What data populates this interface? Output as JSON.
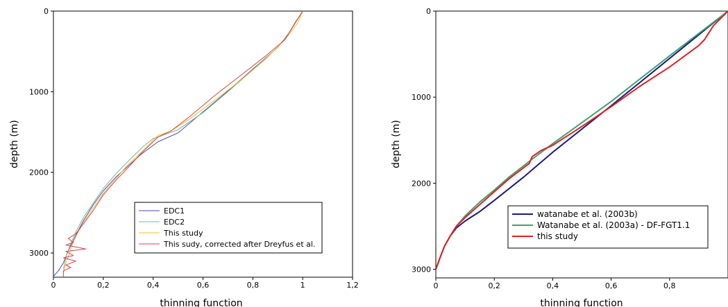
{
  "chart_data": [
    {
      "type": "line",
      "xlabel": "thinning function",
      "ylabel": "depth (m)",
      "xlim": [
        0,
        1.2
      ],
      "ylim": [
        3300,
        0
      ],
      "y_inverted": true,
      "xticks": [
        0,
        0.2,
        0.4,
        0.6,
        0.8,
        1.0,
        1.2
      ],
      "xtick_labels": [
        "0",
        "0,2",
        "0,4",
        "0,6",
        "0,8",
        "1",
        "1,2"
      ],
      "yticks": [
        0,
        1000,
        2000,
        3000
      ],
      "ytick_labels": [
        "0",
        "1000",
        "2000",
        "3000"
      ],
      "legend_position": "lower-right",
      "series": [
        {
          "name": "EDC1",
          "color": "#4a4ab8",
          "points": [
            [
              1.0,
              0
            ],
            [
              0.95,
              250
            ],
            [
              0.9,
              450
            ],
            [
              0.8,
              720
            ],
            [
              0.7,
              990
            ],
            [
              0.6,
              1250
            ],
            [
              0.5,
              1510
            ],
            [
              0.42,
              1620
            ],
            [
              0.35,
              1780
            ],
            [
              0.3,
              1920
            ],
            [
              0.25,
              2060
            ],
            [
              0.2,
              2230
            ],
            [
              0.16,
              2400
            ],
            [
              0.12,
              2600
            ],
            [
              0.09,
              2780
            ],
            [
              0.06,
              2970
            ],
            [
              0.04,
              3120
            ],
            [
              0.02,
              3220
            ],
            [
              0.0,
              3290
            ]
          ]
        },
        {
          "name": "EDC2",
          "color": "#6fb8a0",
          "points": [
            [
              1.0,
              0
            ],
            [
              0.95,
              250
            ],
            [
              0.9,
              450
            ],
            [
              0.8,
              730
            ],
            [
              0.7,
              1000
            ],
            [
              0.6,
              1260
            ],
            [
              0.5,
              1470
            ],
            [
              0.44,
              1540
            ],
            [
              0.4,
              1580
            ],
            [
              0.36,
              1680
            ],
            [
              0.3,
              1860
            ],
            [
              0.25,
              2020
            ],
            [
              0.2,
              2200
            ],
            [
              0.16,
              2380
            ],
            [
              0.12,
              2560
            ],
            [
              0.09,
              2740
            ],
            [
              0.07,
              2880
            ],
            [
              0.05,
              3050
            ],
            [
              0.04,
              3200
            ]
          ]
        },
        {
          "name": "This study",
          "color": "#f0c020",
          "points": [
            [
              1.0,
              0
            ],
            [
              0.98,
              150
            ],
            [
              0.93,
              350
            ],
            [
              0.85,
              600
            ],
            [
              0.75,
              860
            ],
            [
              0.65,
              1100
            ],
            [
              0.55,
              1330
            ],
            [
              0.47,
              1490
            ],
            [
              0.42,
              1540
            ],
            [
              0.4,
              1600
            ],
            [
              0.35,
              1760
            ],
            [
              0.3,
              1900
            ],
            [
              0.25,
              2080
            ],
            [
              0.2,
              2260
            ],
            [
              0.16,
              2440
            ],
            [
              0.12,
              2620
            ],
            [
              0.1,
              2740
            ],
            [
              0.08,
              2860
            ],
            [
              0.07,
              2950
            ],
            [
              0.06,
              3040
            ],
            [
              0.05,
              3120
            ],
            [
              0.04,
              3250
            ]
          ]
        },
        {
          "name": "This sudy, corrected after Dreyfus et al.",
          "color": "#e04050",
          "points": [
            [
              1.0,
              0
            ],
            [
              0.97,
              140
            ],
            [
              0.93,
              350
            ],
            [
              0.9,
              430
            ],
            [
              0.85,
              560
            ],
            [
              0.75,
              800
            ],
            [
              0.65,
              1040
            ],
            [
              0.55,
              1300
            ],
            [
              0.47,
              1490
            ],
            [
              0.42,
              1560
            ],
            [
              0.4,
              1620
            ],
            [
              0.35,
              1770
            ],
            [
              0.3,
              1940
            ],
            [
              0.25,
              2100
            ],
            [
              0.2,
              2280
            ],
            [
              0.16,
              2470
            ],
            [
              0.12,
              2640
            ],
            [
              0.09,
              2760
            ],
            [
              0.06,
              2820
            ],
            [
              0.08,
              2870
            ],
            [
              0.05,
              2900
            ],
            [
              0.13,
              2950
            ],
            [
              0.05,
              2980
            ],
            [
              0.08,
              3030
            ],
            [
              0.04,
              3060
            ],
            [
              0.09,
              3100
            ],
            [
              0.05,
              3150
            ],
            [
              0.07,
              3180
            ],
            [
              0.04,
              3220
            ],
            [
              0.04,
              3300
            ]
          ]
        }
      ]
    },
    {
      "type": "line",
      "xlabel": "thinning function",
      "ylabel": "depth (m)",
      "xlim": [
        0,
        1.0
      ],
      "ylim": [
        3100,
        0
      ],
      "y_inverted": true,
      "xticks": [
        0,
        0.2,
        0.4,
        0.6,
        0.8
      ],
      "xtick_labels": [
        "0",
        "0,2",
        "0,4",
        "0,6",
        "0,8"
      ],
      "yticks": [
        0,
        1000,
        2000,
        3000
      ],
      "ytick_labels": [
        "0",
        "1000",
        "2000",
        "3000"
      ],
      "legend_position": "lower-right",
      "series": [
        {
          "name": "watanabe et al. (2003b)",
          "color": "#1a1a80",
          "points": [
            [
              1.0,
              0
            ],
            [
              0.8,
              550
            ],
            [
              0.6,
              1100
            ],
            [
              0.4,
              1640
            ],
            [
              0.3,
              1930
            ],
            [
              0.2,
              2200
            ],
            [
              0.15,
              2330
            ],
            [
              0.1,
              2440
            ],
            [
              0.07,
              2520
            ],
            [
              0.05,
              2610
            ],
            [
              0.03,
              2730
            ],
            [
              0.015,
              2860
            ],
            [
              0.0,
              3000
            ]
          ]
        },
        {
          "name": "Watanabe et al. (2003a) - DF-FGT1.1",
          "color": "#40a070",
          "points": [
            [
              1.0,
              0
            ],
            [
              0.8,
              520
            ],
            [
              0.6,
              1050
            ],
            [
              0.4,
              1540
            ],
            [
              0.33,
              1720
            ],
            [
              0.25,
              1930
            ],
            [
              0.2,
              2080
            ],
            [
              0.15,
              2220
            ],
            [
              0.1,
              2380
            ],
            [
              0.07,
              2500
            ],
            [
              0.05,
              2610
            ],
            [
              0.03,
              2730
            ],
            [
              0.015,
              2860
            ],
            [
              0.0,
              3000
            ]
          ]
        },
        {
          "name": "this study",
          "color": "#e02020",
          "points": [
            [
              1.0,
              0
            ],
            [
              0.95,
              170
            ],
            [
              0.92,
              330
            ],
            [
              0.9,
              400
            ],
            [
              0.8,
              650
            ],
            [
              0.7,
              870
            ],
            [
              0.6,
              1110
            ],
            [
              0.5,
              1340
            ],
            [
              0.4,
              1560
            ],
            [
              0.36,
              1620
            ],
            [
              0.33,
              1690
            ],
            [
              0.32,
              1770
            ],
            [
              0.25,
              1950
            ],
            [
              0.2,
              2100
            ],
            [
              0.15,
              2250
            ],
            [
              0.1,
              2400
            ],
            [
              0.07,
              2500
            ],
            [
              0.05,
              2610
            ],
            [
              0.03,
              2730
            ],
            [
              0.015,
              2860
            ],
            [
              0.0,
              3000
            ]
          ]
        }
      ]
    }
  ]
}
